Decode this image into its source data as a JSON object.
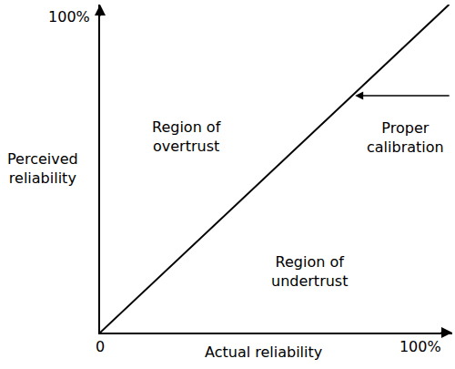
{
  "chart_data": {
    "type": "line",
    "x": [
      0,
      109
    ],
    "values": [
      0,
      104
    ],
    "color": "#000000",
    "xlim": [
      0,
      110
    ],
    "ylim": [
      0,
      104
    ],
    "xticks": [
      0,
      {
        "value": 100,
        "label": "100%"
      }
    ],
    "yticks": [
      {
        "value": 100,
        "label": "100%"
      }
    ],
    "x_label": "Actual reliability",
    "y_label": [
      "Perceived",
      "reliability"
    ],
    "annotations": [
      [
        "Region of",
        "overtrust"
      ],
      [
        "Region of",
        "undertrust"
      ],
      [
        "Proper",
        "calibration"
      ]
    ],
    "grid": false
  }
}
